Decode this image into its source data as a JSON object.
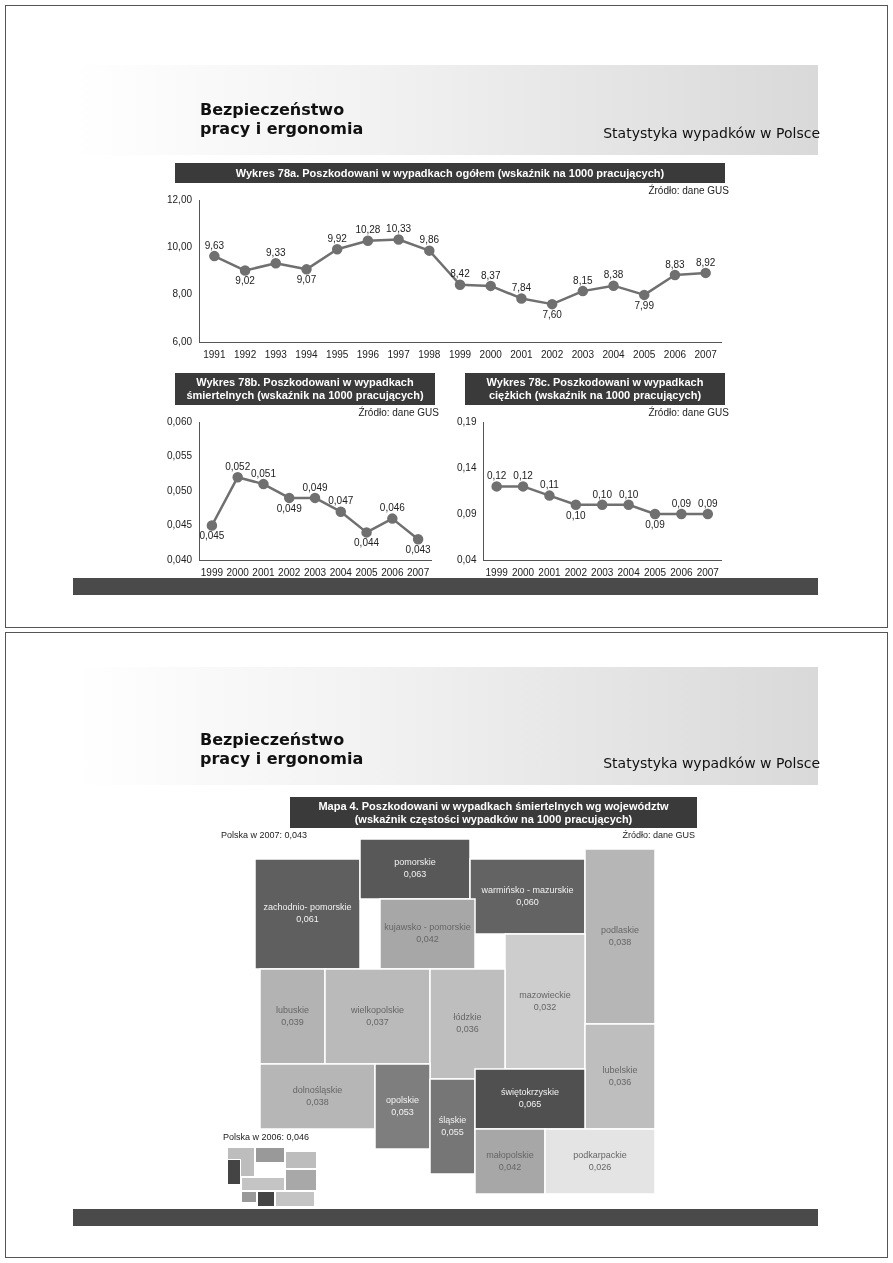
{
  "chart_data": [
    {
      "type": "line",
      "title": "Wykres 78a. Poszkodowani w wypadkach ogółem (wskaźnik na 1000 pracujących)",
      "categories": [
        "1991",
        "1992",
        "1993",
        "1994",
        "1995",
        "1996",
        "1997",
        "1998",
        "1999",
        "2000",
        "2001",
        "2002",
        "2003",
        "2004",
        "2005",
        "2006",
        "2007"
      ],
      "series": [
        {
          "color": "#707070",
          "values": [
            9.63,
            9.02,
            9.33,
            9.07,
            9.92,
            10.28,
            10.33,
            9.86,
            8.42,
            8.37,
            7.84,
            7.6,
            8.15,
            8.38,
            7.99,
            8.83,
            8.92
          ],
          "value_labels": [
            "9,63",
            "9,02",
            "9,33",
            "9,07",
            "9,92",
            "10,28",
            "10,33",
            "9,86",
            "8,42",
            "8,37",
            "7,84",
            "7,60",
            "8,15",
            "8,38",
            "7,99",
            "8,83",
            "8,92"
          ]
        }
      ],
      "ylim": [
        6,
        12
      ],
      "yticks": [
        {
          "value": 6,
          "label": "6,00"
        },
        {
          "value": 8,
          "label": "8,00"
        },
        {
          "value": 10,
          "label": "10,00"
        },
        {
          "value": 12,
          "label": "12,00"
        }
      ],
      "marker": "circle",
      "line_style": "solid",
      "grid": false,
      "legend": false,
      "annotations": [
        "Bezpieczeństwo pracy i ergonomia",
        "Statystyka wypadków w Polsce",
        "Źródło: dane GUS"
      ]
    },
    {
      "type": "line",
      "title": "Wykres 78b. Poszkodowani w wypadkach śmiertelnych (wskaźnik na 1000 pracujących)",
      "categories": [
        "1999",
        "2000",
        "2001",
        "2002",
        "2003",
        "2004",
        "2005",
        "2006",
        "2007"
      ],
      "series": [
        {
          "color": "#707070",
          "values": [
            0.045,
            0.052,
            0.051,
            0.049,
            0.049,
            0.047,
            0.044,
            0.046,
            0.043
          ],
          "value_labels": [
            "0,045",
            "0,052",
            "0,051",
            "0,049",
            "0,049",
            "0,047",
            "0,044",
            "0,046",
            "0,043"
          ]
        }
      ],
      "ylim": [
        0.04,
        0.06
      ],
      "yticks": [
        {
          "value": 0.04,
          "label": "0,040"
        },
        {
          "value": 0.045,
          "label": "0,045"
        },
        {
          "value": 0.05,
          "label": "0,050"
        },
        {
          "value": 0.055,
          "label": "0,055"
        },
        {
          "value": 0.06,
          "label": "0,060"
        }
      ],
      "marker": "circle",
      "line_style": "solid",
      "grid": false,
      "legend": false,
      "annotations": [
        "Źródło: dane GUS"
      ]
    },
    {
      "type": "line",
      "title": "Wykres 78c. Poszkodowani w wypadkach ciężkich (wskaźnik na 1000 pracujących)",
      "categories": [
        "1999",
        "2000",
        "2001",
        "2002",
        "2003",
        "2004",
        "2005",
        "2006",
        "2007"
      ],
      "series": [
        {
          "color": "#707070",
          "values": [
            0.12,
            0.12,
            0.11,
            0.1,
            0.1,
            0.1,
            0.09,
            0.09,
            0.09
          ],
          "value_labels": [
            "0,12",
            "0,12",
            "0,11",
            "0,10",
            "0,10",
            "0,10",
            "0,09",
            "0,09",
            "0,09"
          ]
        }
      ],
      "ylim": [
        0.04,
        0.19
      ],
      "yticks": [
        {
          "value": 0.04,
          "label": "0,04"
        },
        {
          "value": 0.09,
          "label": "0,09"
        },
        {
          "value": 0.14,
          "label": "0,14"
        },
        {
          "value": 0.19,
          "label": "0,19"
        }
      ],
      "marker": "circle",
      "line_style": "solid",
      "grid": false,
      "legend": false,
      "annotations": [
        "Źródło: dane GUS"
      ]
    },
    {
      "type": "other",
      "title": "Mapa 4. Poszkodowani w wypadkach śmiertelnych wg województw",
      "subtitle": "(wskaźnik częstości wypadków na 1000 pracujących)",
      "categories": [
        "zachodnio- pomorskie",
        "pomorskie",
        "warmińsko - mazurskie",
        "kujawsko - pomorskie",
        "podlaskie",
        "lubuskie",
        "wielkopolskie",
        "mazowieckie",
        "łódzkie",
        "dolnośląskie",
        "lubelskie",
        "opolskie",
        "śląskie",
        "świętokrzyskie",
        "małopolskie",
        "podkarpackie"
      ],
      "values": [
        0.061,
        0.063,
        0.06,
        0.042,
        0.038,
        0.039,
        0.037,
        0.032,
        0.036,
        0.038,
        0.036,
        0.053,
        0.055,
        0.065,
        0.042,
        0.026
      ],
      "value_labels": [
        "0,061",
        "0,063",
        "0,060",
        "0,042",
        "0,038",
        "0,039",
        "0,037",
        "0,032",
        "0,036",
        "0,038",
        "0,036",
        "0,053",
        "0,055",
        "0,065",
        "0,042",
        "0,026"
      ],
      "annotations": [
        "Bezpieczeństwo pracy i ergonomia",
        "Statystyka wypadków w Polsce",
        "Źródło: dane GUS",
        "Polska w 2007: 0,043",
        "Polska w 2006: 0,046"
      ]
    }
  ]
}
